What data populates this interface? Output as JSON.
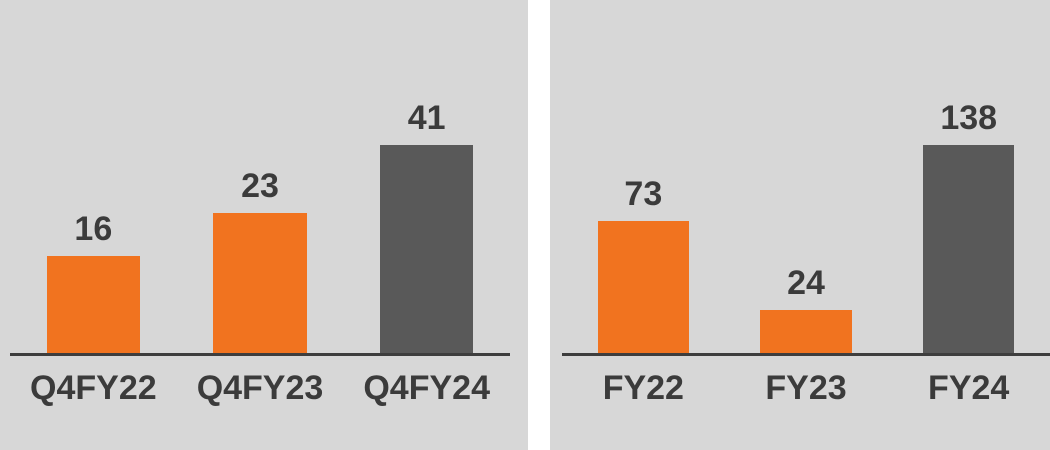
{
  "page": {
    "background": "#FFFFFF",
    "panel_background": "#D7D7D7",
    "axis_color": "#3D3D3D",
    "text_color": "#3B3B3B",
    "orange": "#F1731F",
    "dark_gray": "#595959"
  },
  "chart_data": [
    {
      "type": "bar",
      "title": "",
      "xlabel": "",
      "ylabel": "",
      "categories": [
        "Q4FY22",
        "Q4FY23",
        "Q4FY24"
      ],
      "values": [
        16,
        23,
        41
      ],
      "data_labels": [
        "16",
        "23",
        "41"
      ],
      "bar_colors": [
        "#F1731F",
        "#F1731F",
        "#595959"
      ],
      "ylim": [
        0,
        41
      ],
      "grid": false,
      "legend": false,
      "y_axis_visible": false
    },
    {
      "type": "bar",
      "title": "",
      "xlabel": "",
      "ylabel": "",
      "categories": [
        "FY22",
        "FY23",
        "FY24"
      ],
      "values": [
        73,
        24,
        138
      ],
      "data_labels": [
        "73",
        "24",
        "138"
      ],
      "bar_colors": [
        "#F1731F",
        "#F1731F",
        "#595959"
      ],
      "ylim": [
        0,
        138
      ],
      "grid": false,
      "legend": false,
      "y_axis_visible": false
    }
  ]
}
